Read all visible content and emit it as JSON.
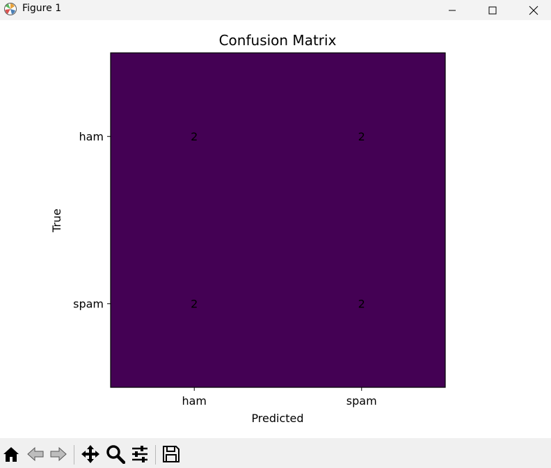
{
  "window": {
    "title": "Figure 1",
    "icons": [
      "matplotlib-logo-icon",
      "minimize-icon",
      "maximize-icon",
      "close-icon"
    ]
  },
  "toolbar": {
    "buttons": [
      "home-icon",
      "back-icon",
      "forward-icon",
      "pan-icon",
      "zoom-icon",
      "configure-subplots-icon",
      "save-icon"
    ]
  },
  "chart_data": {
    "type": "heatmap",
    "title": "Confusion Matrix",
    "xlabel": "Predicted",
    "ylabel": "True",
    "x_categories": [
      "ham",
      "spam"
    ],
    "y_categories": [
      "ham",
      "spam"
    ],
    "values": [
      [
        2,
        2
      ],
      [
        2,
        2
      ]
    ],
    "cell_color": "#440154",
    "grid": false,
    "legend": "none"
  }
}
